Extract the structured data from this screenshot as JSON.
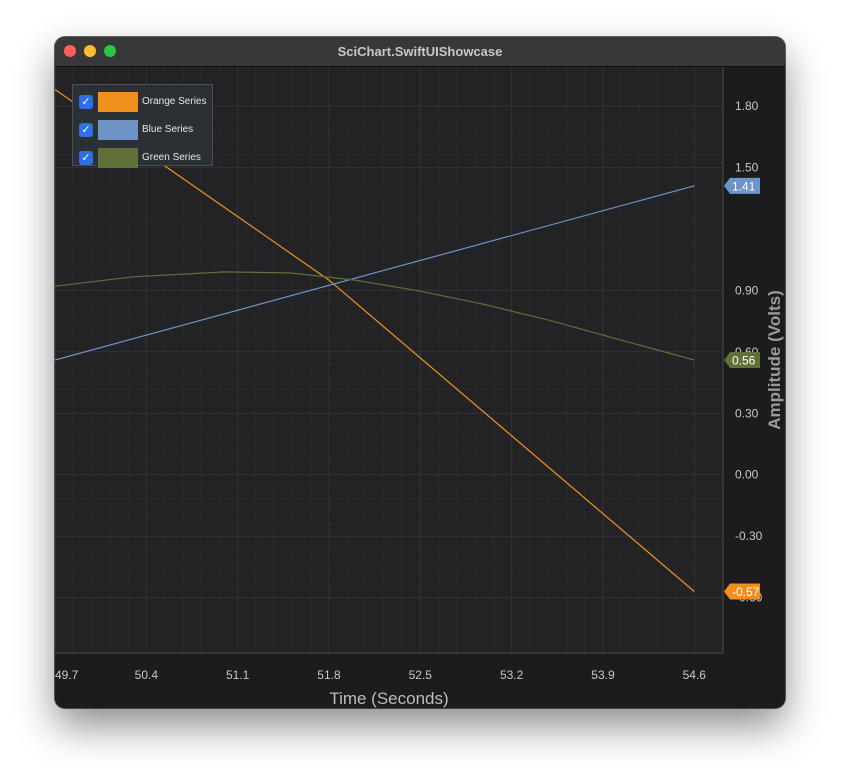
{
  "window": {
    "title": "SciChart.SwiftUIShowcase"
  },
  "colors": {
    "orange": "#f0901e",
    "blue": "#6e93c6",
    "green": "#5f7038",
    "background": "#232326",
    "grid": "#2d2d31",
    "tick_text": "#c8c8c8"
  },
  "legend": {
    "items": [
      {
        "label": "Orange Series",
        "checked": true,
        "color": "#f0901e"
      },
      {
        "label": "Blue Series",
        "checked": true,
        "color": "#6e93c6"
      },
      {
        "label": "Green Series",
        "checked": true,
        "color": "#5f7038"
      }
    ]
  },
  "chart_data": {
    "type": "line",
    "xlabel": "Time (Seconds)",
    "ylabel": "Amplitude (Volts)",
    "xlim": [
      49.7,
      54.82
    ],
    "ylim": [
      -0.87,
      1.99
    ],
    "x_ticks": [
      "49.7",
      "50.4",
      "51.1",
      "51.8",
      "52.5",
      "53.2",
      "53.9",
      "54.6"
    ],
    "y_ticks": [
      "1.80",
      "1.50",
      "0.90",
      "0.60",
      "0.30",
      "0.00",
      "-0.30",
      "-0.60"
    ],
    "grid": true,
    "legend_position": "top-left",
    "series": [
      {
        "name": "Orange Series",
        "color": "#f0901e",
        "points": [
          [
            49.7,
            1.88
          ],
          [
            51.8,
            0.95
          ],
          [
            54.6,
            -0.57
          ]
        ],
        "last_value": "-0.57"
      },
      {
        "name": "Blue Series",
        "color": "#6e93c6",
        "points": [
          [
            49.7,
            0.56
          ],
          [
            54.6,
            1.41
          ]
        ],
        "last_value": "1.41"
      },
      {
        "name": "Green Series",
        "color": "#5f7038",
        "points": [
          [
            49.7,
            0.92
          ],
          [
            50.3,
            0.966
          ],
          [
            51.0,
            0.99
          ],
          [
            51.5,
            0.985
          ],
          [
            52.0,
            0.95
          ],
          [
            52.5,
            0.896
          ],
          [
            53.0,
            0.83
          ],
          [
            53.5,
            0.752
          ],
          [
            54.0,
            0.664
          ],
          [
            54.6,
            0.56
          ]
        ],
        "last_value": "0.56"
      }
    ]
  }
}
